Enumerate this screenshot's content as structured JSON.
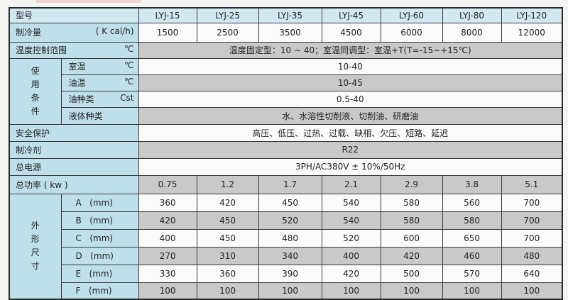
{
  "models": [
    "LYJ-15",
    "LYJ-25",
    "LYJ-35",
    "LYJ-45",
    "LYJ-60",
    "LYJ-80",
    "LYJ-120"
  ],
  "rows": {
    "model": {
      "label": "型号"
    },
    "capacity": {
      "label": "制冷量",
      "unit": "( K cal/h)",
      "values": [
        "1500",
        "2500",
        "3500",
        "4500",
        "6000",
        "8000",
        "12000"
      ]
    },
    "temp_range": {
      "label": "温度控制范围",
      "unit": "℃",
      "value": "温度固定型：10 ~ 40；室温同调型：室温+T(T=-15~+15℃)"
    },
    "conditions": {
      "group": [
        "使",
        "用",
        "条",
        "件"
      ],
      "items": [
        {
          "label": "室温",
          "unit": "℃",
          "value": "10-40"
        },
        {
          "label": "油温",
          "unit": "℃",
          "value": "10-45"
        },
        {
          "label": "油种类",
          "unit": "Cst",
          "value": "0.5-40"
        },
        {
          "label": "液体种类",
          "unit": "",
          "value": "水、水溶性切削液、切削油、研磨油"
        }
      ]
    },
    "safety": {
      "label": "安全保护",
      "value": "高压、低压、过热、过载、缺相、欠压、短路、延迟"
    },
    "refrigerant": {
      "label": "制冷剂",
      "value": "R22"
    },
    "power_supply": {
      "label": "总电源",
      "value": "3PH/AC380V ± 10%/50Hz"
    },
    "power": {
      "label": "总功率 ( kw )",
      "values": [
        "0.75",
        "1.2",
        "1.7",
        "2.1",
        "2.9",
        "3.8",
        "5.1"
      ]
    },
    "dimensions": {
      "group": [
        "外",
        "形",
        "尺",
        "寸"
      ],
      "items": [
        {
          "label": "A",
          "unit": "(mm)",
          "values": [
            "360",
            "420",
            "450",
            "540",
            "580",
            "560",
            "700"
          ]
        },
        {
          "label": "B",
          "unit": "(mm)",
          "values": [
            "420",
            "450",
            "520",
            "540",
            "580",
            "580",
            "700"
          ]
        },
        {
          "label": "C",
          "unit": "(mm)",
          "values": [
            "400",
            "450",
            "480",
            "520",
            "600",
            "650",
            "700"
          ]
        },
        {
          "label": "D",
          "unit": "(mm)",
          "values": [
            "270",
            "310",
            "340",
            "400",
            "420",
            "460",
            "480"
          ]
        },
        {
          "label": "E",
          "unit": "(mm)",
          "values": [
            "330",
            "360",
            "390",
            "420",
            "500",
            "570",
            "640"
          ]
        },
        {
          "label": "F",
          "unit": "(mm)",
          "values": [
            "100",
            "100",
            "100",
            "100",
            "100",
            "100",
            "100"
          ]
        }
      ]
    }
  }
}
